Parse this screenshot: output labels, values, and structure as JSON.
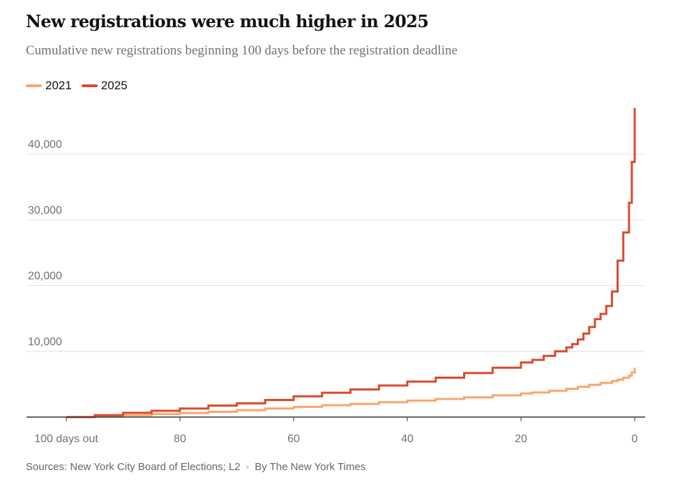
{
  "header": {
    "title": "New registrations were much higher in 2025",
    "subtitle": "Cumulative new registrations beginning 100 days before the registration deadline"
  },
  "footer": {
    "sources": "Sources: New York City Board of Elections; L2",
    "separator": "•",
    "byline": "By The New York Times"
  },
  "chart_data": {
    "type": "line",
    "title": "New registrations were much higher in 2025",
    "subtitle": "Cumulative new registrations beginning 100 days before the registration deadline",
    "xlabel": "",
    "ylabel": "",
    "xlim": [
      100,
      0
    ],
    "ylim": [
      0,
      47000
    ],
    "x_reversed": true,
    "step": true,
    "grid": "horizontal",
    "legend_position": "top-left",
    "x_ticks": [
      {
        "value": 100,
        "label": "100 days out"
      },
      {
        "value": 80,
        "label": "80"
      },
      {
        "value": 60,
        "label": "60"
      },
      {
        "value": 40,
        "label": "40"
      },
      {
        "value": 20,
        "label": "20"
      },
      {
        "value": 0,
        "label": "0"
      }
    ],
    "y_ticks": [
      {
        "value": 10000,
        "label": "10,000"
      },
      {
        "value": 20000,
        "label": "20,000"
      },
      {
        "value": 30000,
        "label": "30,000"
      },
      {
        "value": 40000,
        "label": "40,000"
      }
    ],
    "series": [
      {
        "name": "2021",
        "color": "#f9a66b",
        "points": [
          [
            100,
            0
          ],
          [
            95,
            100
          ],
          [
            90,
            300
          ],
          [
            85,
            450
          ],
          [
            80,
            600
          ],
          [
            75,
            800
          ],
          [
            70,
            1050
          ],
          [
            65,
            1300
          ],
          [
            60,
            1550
          ],
          [
            55,
            1800
          ],
          [
            50,
            2000
          ],
          [
            45,
            2250
          ],
          [
            40,
            2500
          ],
          [
            35,
            2750
          ],
          [
            30,
            3000
          ],
          [
            25,
            3300
          ],
          [
            20,
            3600
          ],
          [
            18,
            3750
          ],
          [
            15,
            4000
          ],
          [
            12,
            4300
          ],
          [
            10,
            4600
          ],
          [
            8,
            4900
          ],
          [
            6,
            5200
          ],
          [
            4,
            5500
          ],
          [
            3,
            5700
          ],
          [
            2,
            6000
          ],
          [
            1,
            6300
          ],
          [
            0.5,
            6800
          ],
          [
            0,
            7500
          ]
        ]
      },
      {
        "name": "2025",
        "color": "#d9492c",
        "points": [
          [
            100,
            0
          ],
          [
            95,
            300
          ],
          [
            90,
            650
          ],
          [
            85,
            950
          ],
          [
            80,
            1300
          ],
          [
            75,
            1750
          ],
          [
            70,
            2100
          ],
          [
            65,
            2600
          ],
          [
            60,
            3150
          ],
          [
            55,
            3700
          ],
          [
            50,
            4200
          ],
          [
            45,
            4800
          ],
          [
            40,
            5400
          ],
          [
            35,
            6000
          ],
          [
            30,
            6700
          ],
          [
            25,
            7500
          ],
          [
            20,
            8300
          ],
          [
            18,
            8700
          ],
          [
            16,
            9300
          ],
          [
            14,
            10000
          ],
          [
            12,
            10600
          ],
          [
            11,
            11100
          ],
          [
            10,
            11800
          ],
          [
            9,
            12700
          ],
          [
            8,
            13700
          ],
          [
            7,
            14900
          ],
          [
            6,
            15700
          ],
          [
            5,
            16900
          ],
          [
            4,
            19100
          ],
          [
            3,
            23800
          ],
          [
            2,
            28100
          ],
          [
            1,
            32600
          ],
          [
            0.5,
            38800
          ],
          [
            0,
            47000
          ]
        ]
      }
    ]
  }
}
